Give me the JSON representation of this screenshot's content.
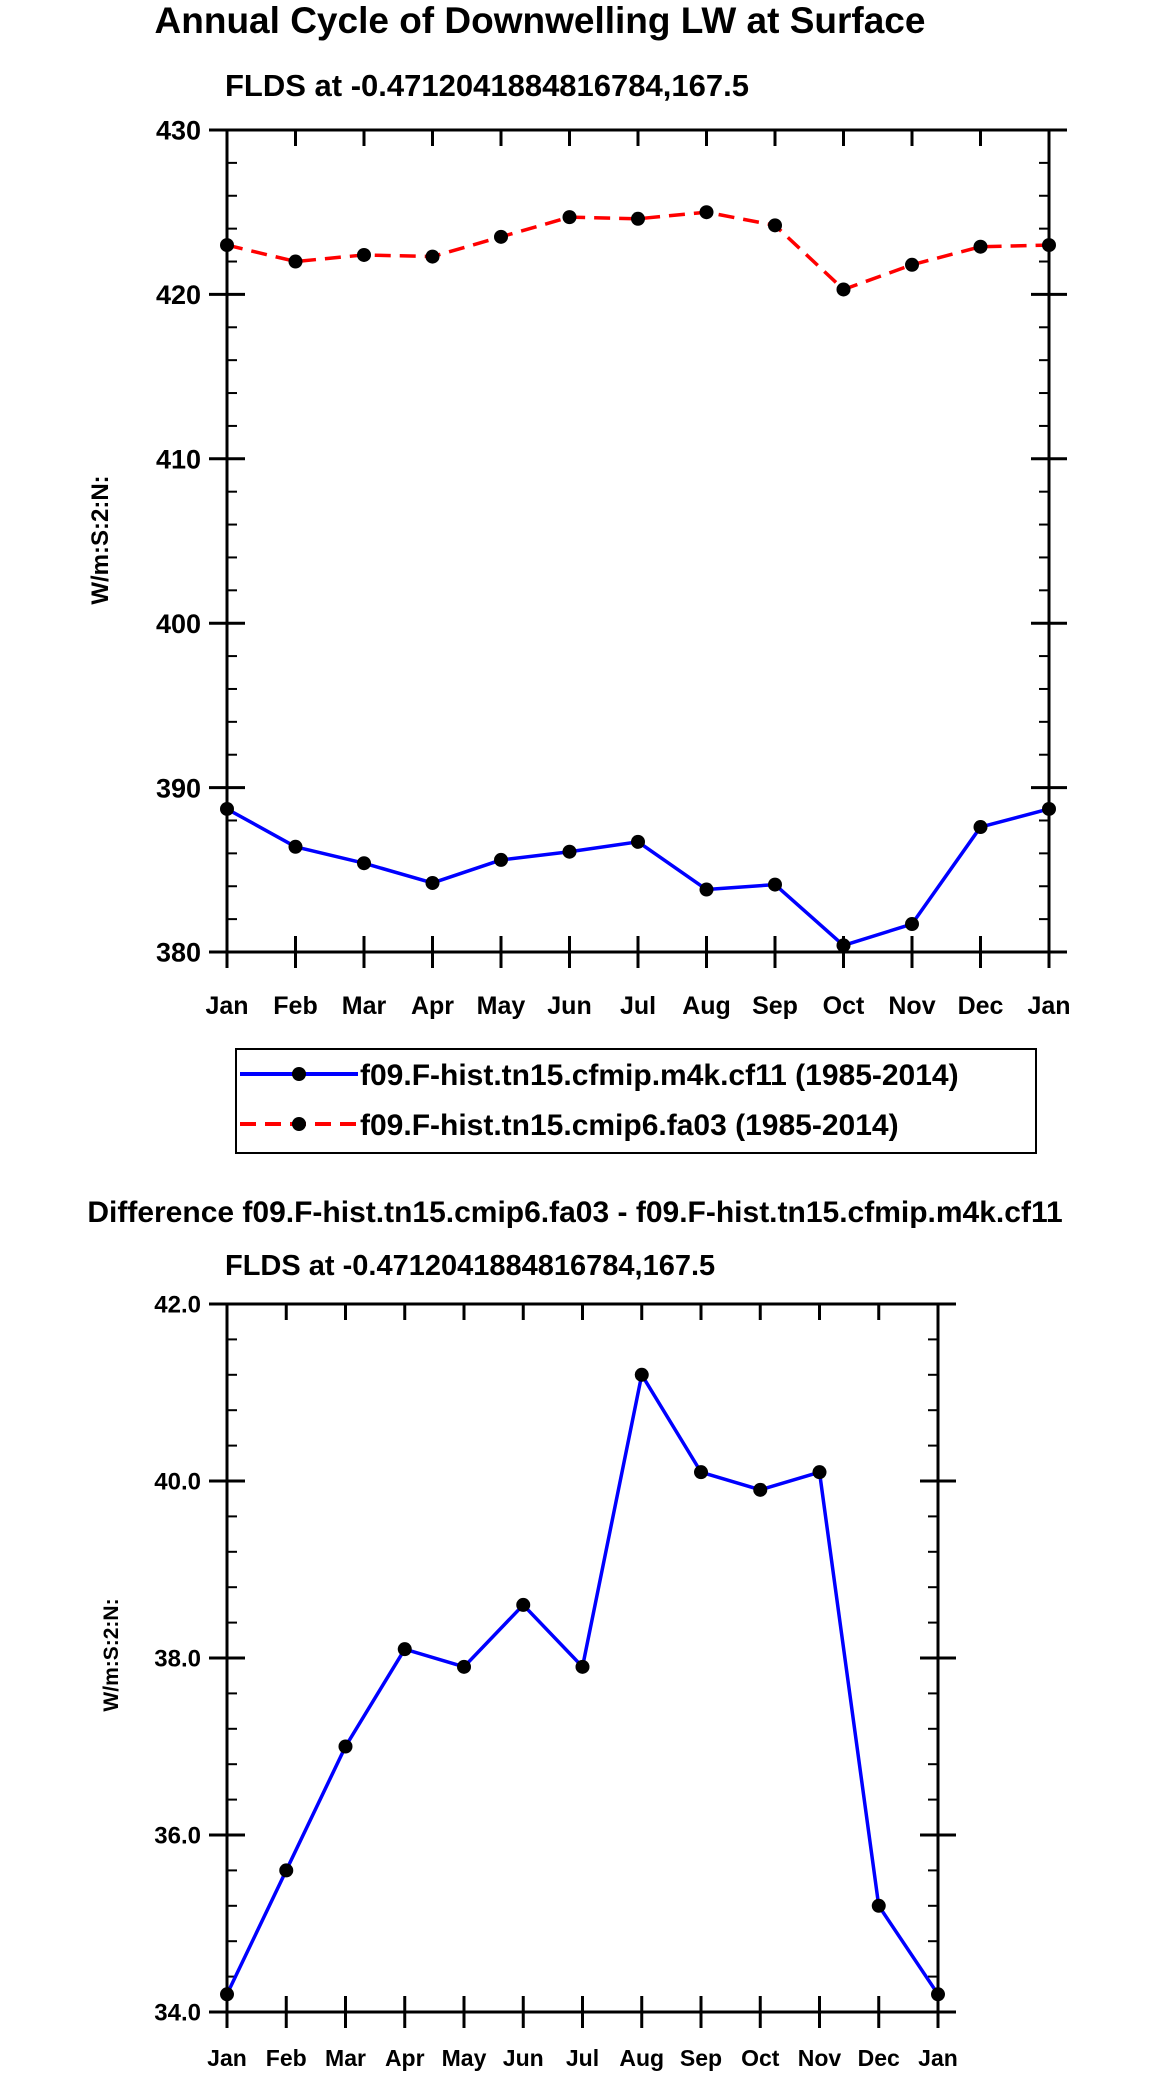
{
  "chart_data": [
    {
      "type": "line",
      "title": "Annual Cycle of Downwelling LW at Surface",
      "subtitle": "FLDS at -0.4712041884816784,167.5",
      "ylabel": "W/m:S:2:N:",
      "xlabel": "",
      "categories": [
        "Jan",
        "Feb",
        "Mar",
        "Apr",
        "May",
        "Jun",
        "Jul",
        "Aug",
        "Sep",
        "Oct",
        "Nov",
        "Dec",
        "Jan"
      ],
      "ylim": [
        380,
        430
      ],
      "yticks": [
        "380",
        "390",
        "400",
        "410",
        "420",
        "430"
      ],
      "ytick_values": [
        380,
        390,
        400,
        410,
        420,
        430
      ],
      "series": [
        {
          "name": "f09.F-hist.tn15.cfmip.m4k.cf11 (1985-2014)",
          "color": "#0000ff",
          "dash": "solid",
          "values": [
            388.7,
            386.4,
            385.4,
            384.2,
            385.6,
            386.1,
            386.7,
            383.8,
            384.1,
            380.4,
            381.7,
            387.6,
            388.7
          ]
        },
        {
          "name": "f09.F-hist.tn15.cmip6.fa03 (1985-2014)",
          "color": "#ff0000",
          "dash": "dashed",
          "values": [
            423.0,
            422.0,
            422.4,
            422.3,
            423.5,
            424.7,
            424.6,
            425.0,
            424.2,
            420.3,
            421.8,
            422.9,
            423.0
          ]
        }
      ],
      "legend": "below"
    },
    {
      "type": "line",
      "title": "Difference f09.F-hist.tn15.cmip6.fa03 - f09.F-hist.tn15.cfmip.m4k.cf11",
      "subtitle": "FLDS at -0.4712041884816784,167.5",
      "ylabel": "W/m:S:2:N:",
      "xlabel": "",
      "categories": [
        "Jan",
        "Feb",
        "Mar",
        "Apr",
        "May",
        "Jun",
        "Jul",
        "Aug",
        "Sep",
        "Oct",
        "Nov",
        "Dec",
        "Jan"
      ],
      "ylim": [
        34.0,
        42.0
      ],
      "yticks": [
        "34.0",
        "36.0",
        "38.0",
        "40.0",
        "42.0"
      ],
      "ytick_values": [
        34.0,
        36.0,
        38.0,
        40.0,
        42.0
      ],
      "series": [
        {
          "name": "Difference",
          "color": "#0000ff",
          "dash": "solid",
          "values": [
            34.2,
            35.6,
            37.0,
            38.1,
            37.9,
            38.6,
            37.9,
            41.2,
            40.1,
            39.9,
            40.1,
            35.2,
            34.2
          ]
        }
      ]
    }
  ]
}
